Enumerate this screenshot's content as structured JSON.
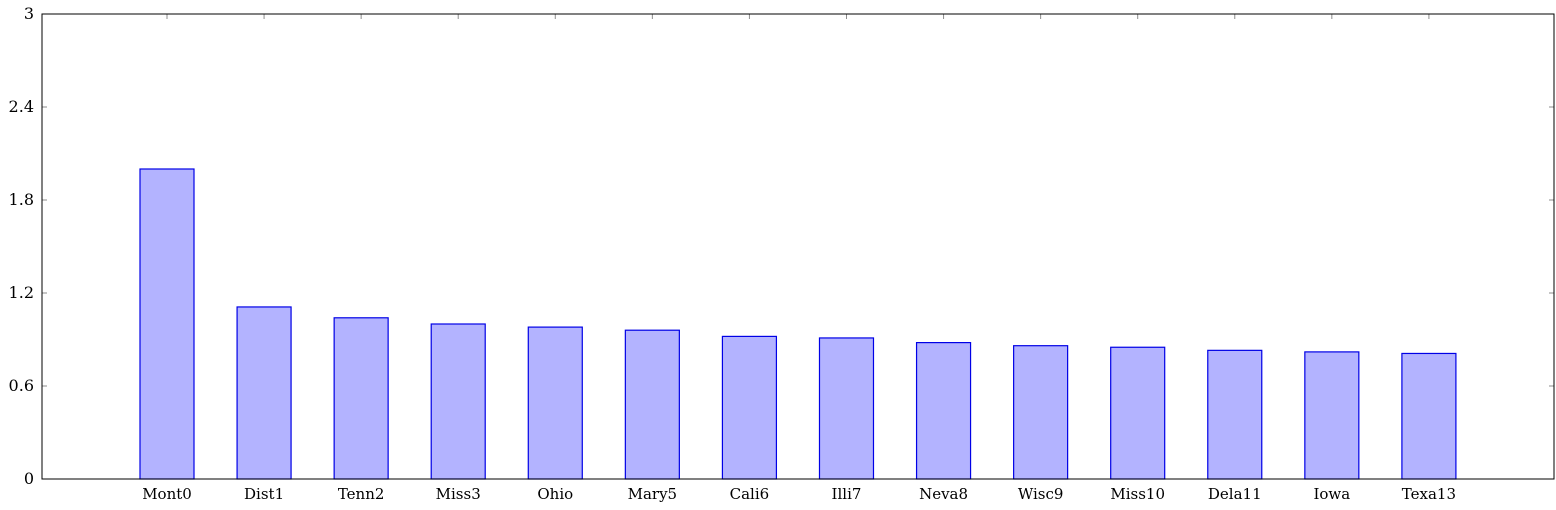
{
  "chart_data": {
    "type": "bar",
    "categories": [
      "Mont0",
      "Dist1",
      "Tenn2",
      "Miss3",
      "Ohio",
      "Mary5",
      "Cali6",
      "Illi7",
      "Neva8",
      "Wisc9",
      "Miss10",
      "Dela11",
      "Iowa",
      "Texa13"
    ],
    "values": [
      2.0,
      1.11,
      1.04,
      1.0,
      0.98,
      0.96,
      0.92,
      0.91,
      0.88,
      0.86,
      0.85,
      0.83,
      0.82,
      0.81
    ],
    "ylim": [
      0,
      3
    ],
    "yticks": [
      "0",
      "0.6",
      "1.2",
      "1.8",
      "2.4",
      "3"
    ],
    "grid": false,
    "colors": {
      "bar_fill": "#b3b3ff",
      "bar_stroke": "#0000e6",
      "axis": "#000000"
    }
  }
}
